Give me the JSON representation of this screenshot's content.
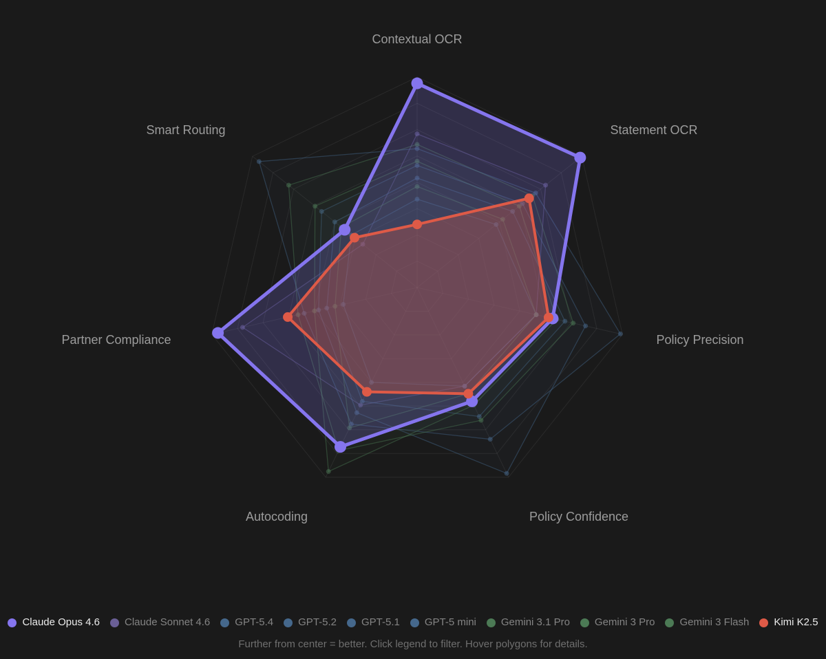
{
  "caption": "Further from center = better. Click legend to filter. Hover polygons for details.",
  "chart_data": {
    "type": "radar",
    "title": "",
    "categories": [
      "Contextual OCR",
      "Statement OCR",
      "Policy Precision",
      "Policy Confidence",
      "Autocoding",
      "Partner Compliance",
      "Smart Routing"
    ],
    "scale": {
      "min": 0,
      "max": 1,
      "rings": 8,
      "tick_labels_visible": false
    },
    "legend_position": "bottom",
    "grid": true,
    "series": [
      {
        "name": "Claude Opus 4.6",
        "color": "#8575ee",
        "active": true,
        "values": [
          0.97,
          0.99,
          0.66,
          0.6,
          0.84,
          0.97,
          0.44
        ]
      },
      {
        "name": "Claude Sonnet 4.6",
        "color": "#6a5f96",
        "active": false,
        "values": [
          0.73,
          0.78,
          0.58,
          0.52,
          0.62,
          0.85,
          0.33
        ]
      },
      {
        "name": "GPT-5.4",
        "color": "#45688c",
        "active": false,
        "values": [
          0.66,
          0.72,
          0.99,
          0.8,
          0.72,
          0.55,
          0.96
        ]
      },
      {
        "name": "GPT-5.2",
        "color": "#45688c",
        "active": false,
        "values": [
          0.58,
          0.64,
          0.82,
          0.98,
          0.66,
          0.48,
          0.58
        ]
      },
      {
        "name": "GPT-5.1",
        "color": "#45688c",
        "active": false,
        "values": [
          0.52,
          0.58,
          0.72,
          0.68,
          0.6,
          0.44,
          0.5
        ]
      },
      {
        "name": "GPT-5 mini",
        "color": "#45688c",
        "active": false,
        "values": [
          0.42,
          0.48,
          0.58,
          0.52,
          0.5,
          0.36,
          0.4
        ]
      },
      {
        "name": "Gemini 3.1 Pro",
        "color": "#4c7a55",
        "active": false,
        "values": [
          0.68,
          0.7,
          0.76,
          0.7,
          0.86,
          0.58,
          0.78
        ]
      },
      {
        "name": "Gemini 3 Pro",
        "color": "#4c7a55",
        "active": false,
        "values": [
          0.6,
          0.62,
          0.68,
          0.62,
          0.97,
          0.5,
          0.62
        ]
      },
      {
        "name": "Gemini 3 Flash",
        "color": "#4c7a55",
        "active": false,
        "values": [
          0.48,
          0.52,
          0.58,
          0.56,
          0.74,
          0.4,
          0.46
        ]
      },
      {
        "name": "Kimi K2.5",
        "color": "#de5a47",
        "active": true,
        "values": [
          0.3,
          0.68,
          0.64,
          0.56,
          0.55,
          0.63,
          0.38
        ]
      }
    ]
  }
}
